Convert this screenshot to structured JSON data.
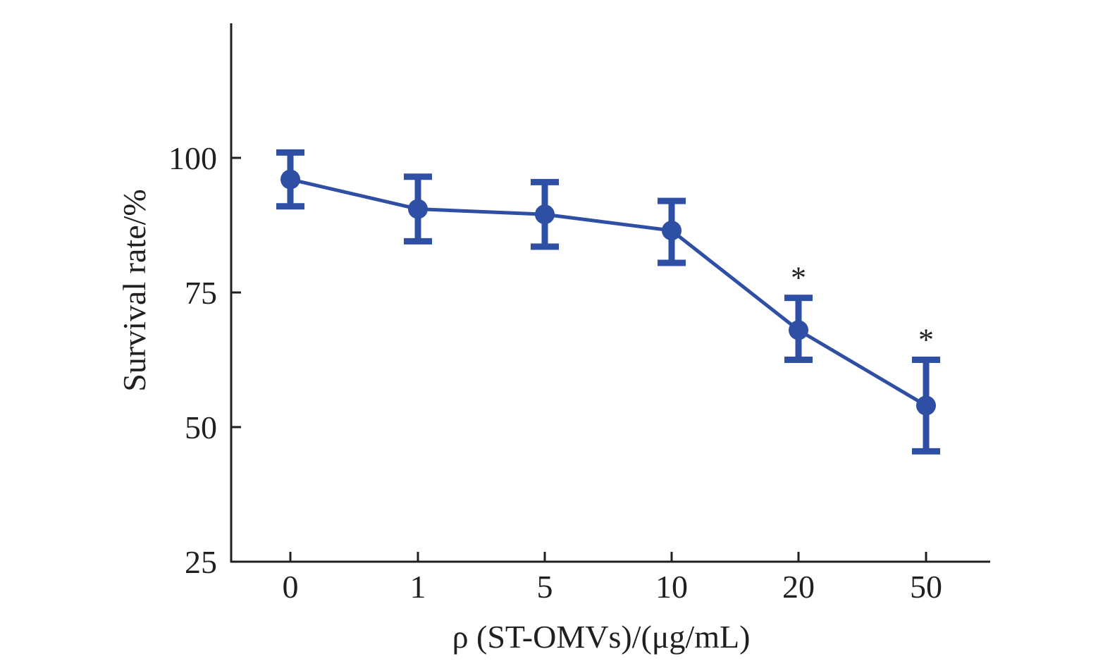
{
  "colors": {
    "series": "#2e4fa3",
    "axis": "#231f20"
  },
  "chart_data": {
    "type": "line",
    "title": "",
    "xlabel": "ρ (ST-OMVs)/(μg/mL)",
    "ylabel": "Survival rate/%",
    "categories": [
      "0",
      "1",
      "5",
      "10",
      "20",
      "50"
    ],
    "series": [
      {
        "values": [
          96,
          90.5,
          89.5,
          86.5,
          68,
          54
        ],
        "error_upper": [
          101,
          96.5,
          95.5,
          92,
          74,
          62.5
        ],
        "error_lower": [
          91,
          84.5,
          83.5,
          80.5,
          62.5,
          45.5
        ],
        "annotations": [
          "",
          "",
          "",
          "",
          "*",
          "*"
        ]
      }
    ],
    "ylim": [
      25,
      125
    ],
    "yticks": [
      "25",
      "50",
      "75",
      "100"
    ],
    "grid": false,
    "legend": "none"
  }
}
